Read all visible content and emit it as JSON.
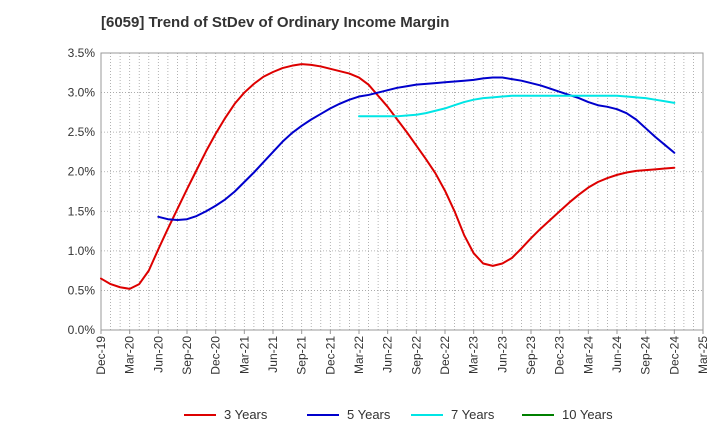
{
  "chart_data": {
    "type": "line",
    "title": "[6059]  Trend of StDev of Ordinary Income Margin",
    "xlabel": "",
    "ylabel": "",
    "ylim": [
      0,
      3.5
    ],
    "yticks": [
      "0.0%",
      "0.5%",
      "1.0%",
      "1.5%",
      "2.0%",
      "2.5%",
      "3.0%",
      "3.5%"
    ],
    "xtick_labels": [
      "Dec-19",
      "Mar-20",
      "Jun-20",
      "Sep-20",
      "Dec-20",
      "Mar-21",
      "Jun-21",
      "Sep-21",
      "Dec-21",
      "Mar-22",
      "Jun-22",
      "Sep-22",
      "Dec-22",
      "Mar-23",
      "Jun-23",
      "Sep-23",
      "Dec-23",
      "Mar-24",
      "Jun-24",
      "Sep-24",
      "Dec-24",
      "Mar-25"
    ],
    "grid": true,
    "legend_position": "bottom",
    "series": [
      {
        "name": "3 Years",
        "color": "#dd0000",
        "x": [
          "Dec-19",
          "Jan-20",
          "Feb-20",
          "Mar-20",
          "Apr-20",
          "May-20",
          "Jun-20",
          "Jul-20",
          "Aug-20",
          "Sep-20",
          "Oct-20",
          "Nov-20",
          "Dec-20",
          "Jan-21",
          "Feb-21",
          "Mar-21",
          "Apr-21",
          "May-21",
          "Jun-21",
          "Jul-21",
          "Aug-21",
          "Sep-21",
          "Oct-21",
          "Nov-21",
          "Dec-21",
          "Jan-22",
          "Feb-22",
          "Mar-22",
          "Apr-22",
          "May-22",
          "Jun-22",
          "Jul-22",
          "Aug-22",
          "Sep-22",
          "Oct-22",
          "Nov-22",
          "Dec-22",
          "Jan-23",
          "Feb-23",
          "Mar-23",
          "Apr-23",
          "May-23",
          "Jun-23",
          "Jul-23",
          "Aug-23",
          "Sep-23",
          "Oct-23",
          "Nov-23",
          "Dec-23",
          "Jan-24",
          "Feb-24",
          "Mar-24",
          "Apr-24",
          "May-24",
          "Jun-24",
          "Jul-24",
          "Aug-24",
          "Sep-24",
          "Oct-24",
          "Nov-24",
          "Dec-24"
        ],
        "values": [
          0.65,
          0.58,
          0.54,
          0.52,
          0.58,
          0.75,
          1.02,
          1.28,
          1.53,
          1.78,
          2.02,
          2.26,
          2.48,
          2.68,
          2.86,
          3.0,
          3.11,
          3.2,
          3.26,
          3.31,
          3.34,
          3.36,
          3.35,
          3.33,
          3.3,
          3.27,
          3.24,
          3.19,
          3.1,
          2.96,
          2.82,
          2.66,
          2.5,
          2.33,
          2.16,
          1.98,
          1.76,
          1.5,
          1.2,
          0.97,
          0.84,
          0.81,
          0.84,
          0.91,
          1.03,
          1.16,
          1.28,
          1.39,
          1.5,
          1.61,
          1.71,
          1.8,
          1.87,
          1.92,
          1.96,
          1.99,
          2.01,
          2.02,
          2.03,
          2.04,
          2.05
        ]
      },
      {
        "name": "5 Years",
        "color": "#0000cc",
        "x": [
          "Dec-19",
          "Jan-20",
          "Feb-20",
          "Mar-20",
          "Apr-20",
          "May-20",
          "Jun-20",
          "Jul-20",
          "Aug-20",
          "Sep-20",
          "Oct-20",
          "Nov-20",
          "Dec-20",
          "Jan-21",
          "Feb-21",
          "Mar-21",
          "Apr-21",
          "May-21",
          "Jun-21",
          "Jul-21",
          "Aug-21",
          "Sep-21",
          "Oct-21",
          "Nov-21",
          "Dec-21",
          "Jan-22",
          "Feb-22",
          "Mar-22",
          "Apr-22",
          "May-22",
          "Jun-22",
          "Jul-22",
          "Aug-22",
          "Sep-22",
          "Oct-22",
          "Nov-22",
          "Dec-22",
          "Jan-23",
          "Feb-23",
          "Mar-23",
          "Apr-23",
          "May-23",
          "Jun-23",
          "Jul-23",
          "Aug-23",
          "Sep-23",
          "Oct-23",
          "Nov-23",
          "Dec-23",
          "Jan-24",
          "Feb-24",
          "Mar-24",
          "Apr-24",
          "May-24",
          "Jun-24",
          "Jul-24",
          "Aug-24",
          "Sep-24",
          "Oct-24",
          "Nov-24",
          "Dec-24"
        ],
        "values": [
          null,
          null,
          null,
          null,
          null,
          null,
          1.43,
          1.4,
          1.39,
          1.4,
          1.44,
          1.5,
          1.57,
          1.65,
          1.75,
          1.87,
          1.99,
          2.12,
          2.25,
          2.38,
          2.49,
          2.58,
          2.66,
          2.73,
          2.8,
          2.86,
          2.91,
          2.95,
          2.97,
          3.0,
          3.03,
          3.06,
          3.08,
          3.1,
          3.11,
          3.12,
          3.13,
          3.14,
          3.15,
          3.16,
          3.18,
          3.19,
          3.19,
          3.17,
          3.15,
          3.12,
          3.09,
          3.05,
          3.01,
          2.97,
          2.93,
          2.88,
          2.84,
          2.82,
          2.79,
          2.74,
          2.66,
          2.55,
          2.44,
          2.34,
          2.24
        ]
      },
      {
        "name": "7 Years",
        "color": "#00e5e5",
        "x": [
          "Mar-22",
          "Apr-22",
          "May-22",
          "Jun-22",
          "Jul-22",
          "Aug-22",
          "Sep-22",
          "Oct-22",
          "Nov-22",
          "Dec-22",
          "Jan-23",
          "Feb-23",
          "Mar-23",
          "Apr-23",
          "May-23",
          "Jun-23",
          "Jul-23",
          "Aug-23",
          "Sep-23",
          "Oct-23",
          "Nov-23",
          "Dec-23",
          "Jan-24",
          "Feb-24",
          "Mar-24",
          "Apr-24",
          "May-24",
          "Jun-24",
          "Jul-24",
          "Aug-24",
          "Sep-24",
          "Oct-24",
          "Nov-24",
          "Dec-24"
        ],
        "values": [
          2.7,
          2.7,
          2.7,
          2.7,
          2.7,
          2.71,
          2.72,
          2.74,
          2.77,
          2.8,
          2.84,
          2.88,
          2.91,
          2.93,
          2.94,
          2.95,
          2.96,
          2.96,
          2.96,
          2.96,
          2.96,
          2.96,
          2.96,
          2.96,
          2.96,
          2.96,
          2.96,
          2.96,
          2.95,
          2.94,
          2.93,
          2.91,
          2.89,
          2.87
        ]
      },
      {
        "name": "10 Years",
        "color": "#008000",
        "x": [],
        "values": []
      }
    ]
  }
}
